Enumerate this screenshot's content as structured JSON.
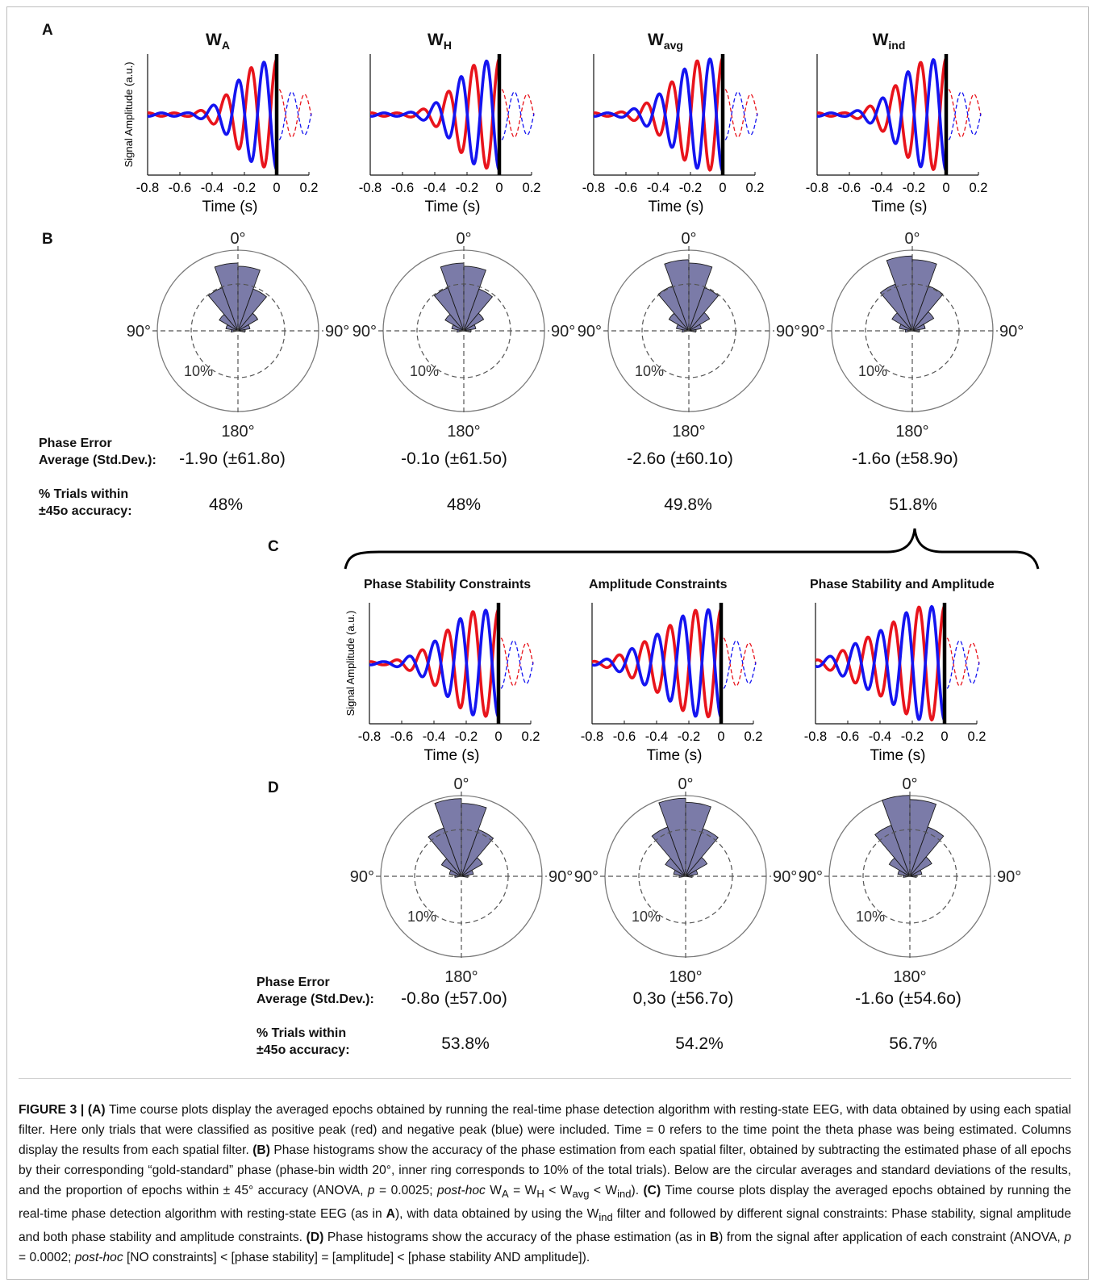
{
  "panels": {
    "A": {
      "letter": "A",
      "titles": [
        {
          "main": "W",
          "sub": "A"
        },
        {
          "main": "W",
          "sub": "H"
        },
        {
          "main": "W",
          "sub": "avg"
        },
        {
          "main": "W",
          "sub": "ind"
        }
      ],
      "ylabel": "Signal Amplitude  (a.u.)",
      "xlabel": "Time (s)",
      "xticks": [
        "-0.8",
        "-0.6",
        "-0.4",
        "-0.2",
        "0",
        "0.2"
      ]
    },
    "B": {
      "letter": "B",
      "polar_labels": {
        "top": "0°",
        "left": "90°",
        "right": "90°",
        "bottom": "180°",
        "ring": "10%"
      },
      "stat_labels": {
        "error_line1": "Phase Error",
        "error_line2": "Average (Std.Dev.):",
        "trials_line1": "% Trials within",
        "trials_line2": "±45o accuracy:"
      },
      "errors": [
        "-1.9o (±61.8o)",
        "-0.1o (±61.5o)",
        "-2.6o (±60.1o)",
        "-1.6o (±58.9o)"
      ],
      "trials": [
        "48%",
        "48%",
        "49.8%",
        "51.8%"
      ]
    },
    "C": {
      "letter": "C",
      "titles": [
        "Phase Stability Constraints",
        "Amplitude Constraints",
        "Phase Stability and Amplitude"
      ],
      "ylabel": "Signal Amplitude  (a.u.)",
      "xlabel": "Time (s)",
      "xticks": [
        "-0.8",
        "-0.6",
        "-0.4",
        "-0.2",
        "0",
        "0.2"
      ]
    },
    "D": {
      "letter": "D",
      "polar_labels": {
        "top": "0°",
        "left": "90°",
        "right": "90°",
        "bottom": "180°",
        "ring": "10%"
      },
      "stat_labels": {
        "error_line1": "Phase Error",
        "error_line2": "Average (Std.Dev.):",
        "trials_line1": "% Trials within",
        "trials_line2": "±45o accuracy:"
      },
      "errors": [
        "-0.8o (±57.0o)",
        "0,3o (±56.7o)",
        "-1.6o (±54.6o)"
      ],
      "trials": [
        "53.8%",
        "54.2%",
        "56.7%"
      ]
    }
  },
  "colors": {
    "positive_peak": "#e8141c",
    "negative_peak": "#1414f0",
    "histogram": "#7b7ba8",
    "axis": "#111111"
  },
  "chart_data": [
    {
      "type": "line",
      "panel": "A",
      "id": "WA",
      "xlim": [
        -0.8,
        0.2
      ],
      "xlabel": "Time (s)",
      "ylabel": "Signal Amplitude  (a.u.)",
      "onset": -0.3,
      "peak_amplitude": 0.95,
      "series": [
        {
          "name": "positive peak",
          "color": "#e8141c"
        },
        {
          "name": "negative peak",
          "color": "#1414f0"
        }
      ]
    },
    {
      "type": "line",
      "panel": "A",
      "id": "WH",
      "xlim": [
        -0.8,
        0.2
      ],
      "xlabel": "Time (s)",
      "ylabel": "",
      "onset": -0.33,
      "peak_amplitude": 0.95,
      "series": [
        {
          "name": "positive peak",
          "color": "#e8141c"
        },
        {
          "name": "negative peak",
          "color": "#1414f0"
        }
      ]
    },
    {
      "type": "line",
      "panel": "A",
      "id": "Wavg",
      "xlim": [
        -0.8,
        0.2
      ],
      "xlabel": "Time (s)",
      "ylabel": "",
      "onset": -0.42,
      "peak_amplitude": 0.95,
      "series": [
        {
          "name": "positive peak",
          "color": "#e8141c"
        },
        {
          "name": "negative peak",
          "color": "#1414f0"
        }
      ]
    },
    {
      "type": "line",
      "panel": "A",
      "id": "Wind",
      "xlim": [
        -0.8,
        0.2
      ],
      "xlabel": "Time (s)",
      "ylabel": "",
      "onset": -0.38,
      "peak_amplitude": 0.95,
      "series": [
        {
          "name": "positive peak",
          "color": "#e8141c"
        },
        {
          "name": "negative peak",
          "color": "#1414f0"
        }
      ]
    },
    {
      "type": "line",
      "panel": "C",
      "id": "phase-stability",
      "xlim": [
        -0.8,
        0.2
      ],
      "xlabel": "Time (s)",
      "ylabel": "Signal Amplitude  (a.u.)",
      "onset": -0.45,
      "peak_amplitude": 0.9,
      "series": [
        {
          "name": "positive peak",
          "color": "#e8141c"
        },
        {
          "name": "negative peak",
          "color": "#1414f0"
        }
      ]
    },
    {
      "type": "line",
      "panel": "C",
      "id": "amplitude",
      "xlim": [
        -0.8,
        0.2
      ],
      "xlabel": "Time (s)",
      "ylabel": "",
      "onset": -0.55,
      "peak_amplitude": 0.9,
      "series": [
        {
          "name": "positive peak",
          "color": "#e8141c"
        },
        {
          "name": "negative peak",
          "color": "#1414f0"
        }
      ]
    },
    {
      "type": "line",
      "panel": "C",
      "id": "phase-stability-amplitude",
      "xlim": [
        -0.8,
        0.2
      ],
      "xlabel": "Time (s)",
      "ylabel": "",
      "onset": -0.6,
      "peak_amplitude": 0.95,
      "series": [
        {
          "name": "positive peak",
          "color": "#e8141c"
        },
        {
          "name": "negative peak",
          "color": "#1414f0"
        }
      ]
    },
    {
      "type": "polar_histogram",
      "panel": "B",
      "id": "WA",
      "bin_width_deg": 20,
      "ring_percent": 10,
      "bins_deg": [
        -90,
        -70,
        -50,
        -30,
        -10,
        10,
        30,
        50,
        70,
        90
      ],
      "values": [
        1.5,
        2.6,
        4.6,
        9.8,
        14.5,
        13.8,
        9.5,
        4.9,
        2.6,
        1.5
      ]
    },
    {
      "type": "polar_histogram",
      "panel": "B",
      "id": "WH",
      "bin_width_deg": 20,
      "ring_percent": 10,
      "bins_deg": [
        -90,
        -70,
        -50,
        -30,
        -10,
        10,
        30,
        50,
        70,
        90
      ],
      "values": [
        1.5,
        2.6,
        4.6,
        9.8,
        14.5,
        13.8,
        9.5,
        4.9,
        2.6,
        1.5
      ]
    },
    {
      "type": "polar_histogram",
      "panel": "B",
      "id": "Wavg",
      "bin_width_deg": 20,
      "ring_percent": 10,
      "bins_deg": [
        -90,
        -70,
        -50,
        -30,
        -10,
        10,
        30,
        50,
        70,
        90
      ],
      "values": [
        1.5,
        2.7,
        4.9,
        10.2,
        15.2,
        14.5,
        9.8,
        5.1,
        2.7,
        1.5
      ]
    },
    {
      "type": "polar_histogram",
      "panel": "B",
      "id": "Wind",
      "bin_width_deg": 20,
      "ring_percent": 10,
      "bins_deg": [
        -90,
        -70,
        -50,
        -30,
        -10,
        10,
        30,
        50,
        70,
        90
      ],
      "values": [
        1.5,
        2.8,
        5.0,
        10.6,
        16.0,
        15.2,
        10.2,
        5.3,
        2.8,
        1.5
      ]
    },
    {
      "type": "polar_histogram",
      "panel": "D",
      "id": "phase-stability",
      "bin_width_deg": 20,
      "ring_percent": 10,
      "bins_deg": [
        -90,
        -70,
        -50,
        -30,
        -10,
        10,
        30,
        50,
        70,
        90
      ],
      "values": [
        1.4,
        2.6,
        4.9,
        11.0,
        16.6,
        15.6,
        10.6,
        5.2,
        2.6,
        1.4
      ]
    },
    {
      "type": "polar_histogram",
      "panel": "D",
      "id": "amplitude",
      "bin_width_deg": 20,
      "ring_percent": 10,
      "bins_deg": [
        -90,
        -70,
        -50,
        -30,
        -10,
        10,
        30,
        50,
        70,
        90
      ],
      "values": [
        1.4,
        2.6,
        5.0,
        11.2,
        16.7,
        15.8,
        10.8,
        5.3,
        2.6,
        1.4
      ]
    },
    {
      "type": "polar_histogram",
      "panel": "D",
      "id": "phase-stability-amplitude",
      "bin_width_deg": 20,
      "ring_percent": 10,
      "bins_deg": [
        -90,
        -70,
        -50,
        -30,
        -10,
        10,
        30,
        50,
        70,
        90
      ],
      "values": [
        1.4,
        2.6,
        5.1,
        11.6,
        17.3,
        16.4,
        11.2,
        5.4,
        2.6,
        1.4
      ]
    }
  ],
  "caption": {
    "figure_label": "FIGURE 3 | ",
    "html": "<b>(A)</b> Time course plots display the averaged epochs obtained by running the real-time phase detection algorithm with resting-state EEG, with data obtained by using each spatial filter. Here only trials that were classified as positive peak (red) and negative peak (blue) were included. Time = 0 refers to the time point the theta phase was being estimated. Columns display the results from each spatial filter. <b>(B)</b> Phase histograms show the accuracy of the phase estimation from each spatial filter, obtained by subtracting the estimated phase of all epochs by their corresponding “gold-standard” phase (phase-bin width 20°, inner ring corresponds to 10% of the total trials). Below are the circular averages and standard deviations of the results, and the proportion of epochs within ± 45° accuracy (ANOVA, <i>p</i> = 0.0025; <i>post-hoc</i> W<sub>A</sub> = W<sub>H</sub> &lt; W<sub>avg</sub> &lt; W<sub>ind</sub>). <b>(C)</b> Time course plots display the averaged epochs obtained by running the real-time phase detection algorithm with resting-state EEG (as in <b>A</b>), with data obtained by using the W<sub>ind</sub> filter and followed by different signal constraints: Phase stability, signal amplitude and both phase stability and amplitude constraints. <b>(D)</b> Phase histograms show the accuracy of the phase estimation (as in <b>B</b>) from the signal after application of each constraint (ANOVA, <i>p</i> = 0.0002; <i>post-hoc</i> [NO constraints] &lt; [phase stability] = [amplitude] &lt; [phase stability AND amplitude])."
  }
}
